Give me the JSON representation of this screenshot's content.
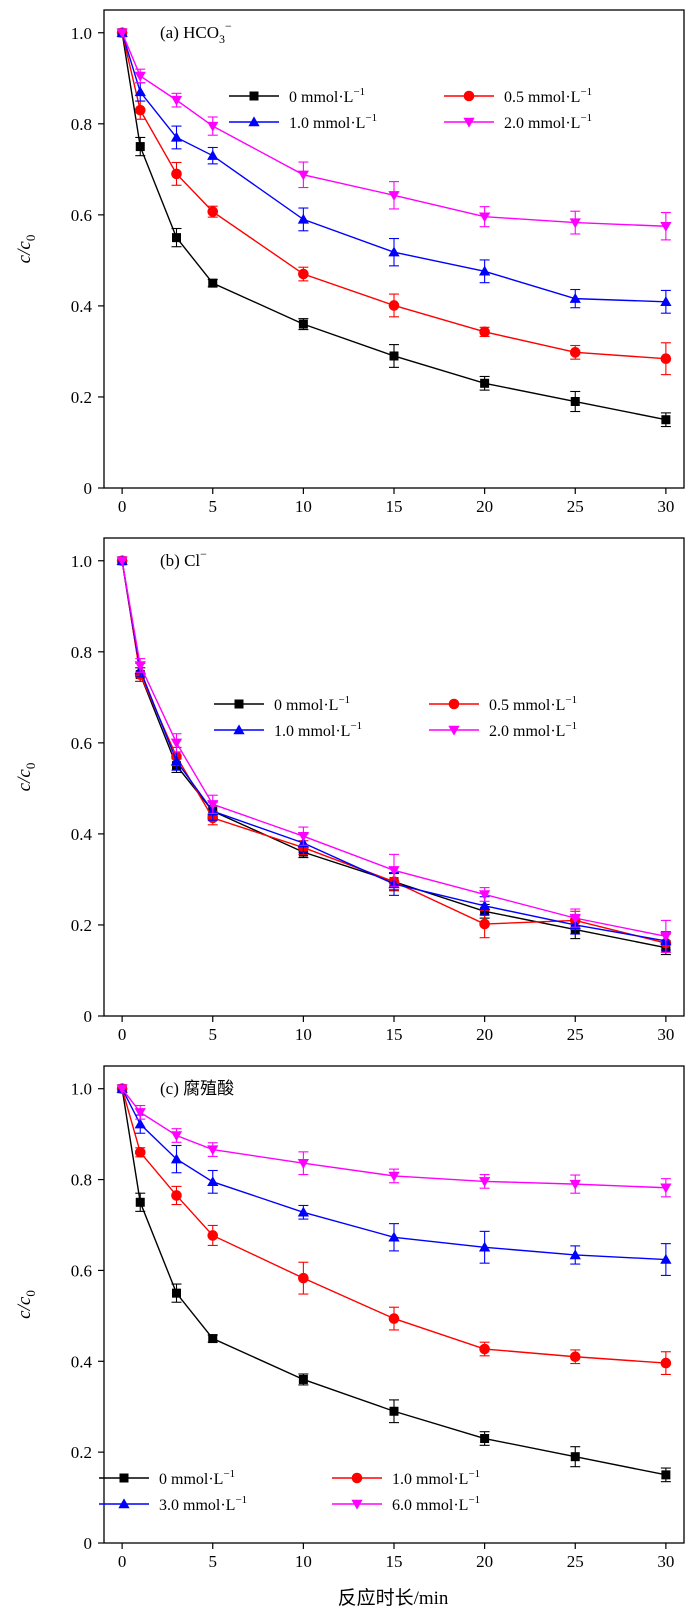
{
  "figure": {
    "xlabel": "反应时长/min",
    "ylabel_main": "c",
    "ylabel_sub": "/c",
    "ylabel_subscript": "0"
  },
  "chart_data": [
    {
      "type": "line",
      "panel_label": "(a) HCO",
      "panel_label_sub": "3",
      "panel_label_sup": "−",
      "xlim": [
        -1,
        31
      ],
      "ylim": [
        0,
        1.05
      ],
      "xticks": [
        0,
        5,
        10,
        15,
        20,
        25,
        30
      ],
      "yticks": [
        0,
        0.2,
        0.4,
        0.6,
        0.8,
        1.0
      ],
      "ytick_labels": [
        "0",
        "0.2",
        "0.4",
        "0.6",
        "0.8",
        "1.0"
      ],
      "error_bars": true,
      "legend_position": "upper-right",
      "x": [
        0,
        1,
        3,
        5,
        10,
        15,
        20,
        25,
        30
      ],
      "series": [
        {
          "name": "0 mmol·L",
          "name_sup": "−1",
          "color": "#000000",
          "marker": "square",
          "values": [
            1.0,
            0.75,
            0.55,
            0.45,
            0.36,
            0.29,
            0.23,
            0.19,
            0.15
          ],
          "errors": [
            0.005,
            0.02,
            0.02,
            0.008,
            0.012,
            0.025,
            0.015,
            0.022,
            0.015
          ]
        },
        {
          "name": "0.5 mmol·L",
          "name_sup": "−1",
          "color": "#ff0000",
          "marker": "circle",
          "values": [
            1.0,
            0.83,
            0.69,
            0.607,
            0.47,
            0.401,
            0.343,
            0.298,
            0.284
          ],
          "errors": [
            0.005,
            0.02,
            0.025,
            0.012,
            0.015,
            0.025,
            0.01,
            0.015,
            0.035
          ]
        },
        {
          "name": "1.0 mmol·L",
          "name_sup": "−1",
          "color": "#0000ff",
          "marker": "triangle-up",
          "values": [
            1.0,
            0.87,
            0.77,
            0.73,
            0.59,
            0.518,
            0.476,
            0.416,
            0.409
          ],
          "errors": [
            0.005,
            0.02,
            0.025,
            0.018,
            0.025,
            0.03,
            0.025,
            0.02,
            0.025
          ]
        },
        {
          "name": "2.0 mmol·L",
          "name_sup": "−1",
          "color": "#ff00ff",
          "marker": "triangle-down",
          "values": [
            1.0,
            0.905,
            0.852,
            0.795,
            0.688,
            0.643,
            0.596,
            0.583,
            0.575
          ],
          "errors": [
            0.005,
            0.015,
            0.015,
            0.02,
            0.028,
            0.03,
            0.022,
            0.025,
            0.03
          ]
        }
      ]
    },
    {
      "type": "line",
      "panel_label": "(b) Cl",
      "panel_label_sub": "",
      "panel_label_sup": "−",
      "xlim": [
        -1,
        31
      ],
      "ylim": [
        0,
        1.05
      ],
      "xticks": [
        0,
        5,
        10,
        15,
        20,
        25,
        30
      ],
      "yticks": [
        0,
        0.2,
        0.4,
        0.6,
        0.8,
        1.0
      ],
      "ytick_labels": [
        "0",
        "0.2",
        "0.4",
        "0.6",
        "0.8",
        "1.0"
      ],
      "error_bars": true,
      "legend_position": "center-right",
      "x": [
        0,
        1,
        3,
        5,
        10,
        15,
        20,
        25,
        30
      ],
      "series": [
        {
          "name": "0 mmol·L",
          "name_sup": "−1",
          "color": "#000000",
          "marker": "square",
          "values": [
            1.0,
            0.75,
            0.55,
            0.45,
            0.36,
            0.295,
            0.23,
            0.19,
            0.15
          ],
          "errors": [
            0.005,
            0.015,
            0.015,
            0.012,
            0.012,
            0.018,
            0.015,
            0.02,
            0.015
          ]
        },
        {
          "name": "0.5 mmol·L",
          "name_sup": "−1",
          "color": "#ff0000",
          "marker": "circle",
          "values": [
            1.0,
            0.75,
            0.57,
            0.435,
            0.37,
            0.295,
            0.202,
            0.21,
            0.16
          ],
          "errors": [
            0.005,
            0.015,
            0.02,
            0.015,
            0.015,
            0.02,
            0.03,
            0.02,
            0.02
          ]
        },
        {
          "name": "1.0 mmol·L",
          "name_sup": "−1",
          "color": "#0000ff",
          "marker": "triangle-up",
          "values": [
            1.0,
            0.76,
            0.56,
            0.45,
            0.38,
            0.29,
            0.242,
            0.2,
            0.165
          ],
          "errors": [
            0.005,
            0.015,
            0.02,
            0.02,
            0.02,
            0.025,
            0.02,
            0.02,
            0.02
          ]
        },
        {
          "name": "2.0 mmol·L",
          "name_sup": "−1",
          "color": "#ff00ff",
          "marker": "triangle-down",
          "values": [
            1.0,
            0.77,
            0.6,
            0.465,
            0.395,
            0.32,
            0.267,
            0.215,
            0.175
          ],
          "errors": [
            0.005,
            0.015,
            0.02,
            0.02,
            0.02,
            0.035,
            0.015,
            0.02,
            0.035
          ]
        }
      ]
    },
    {
      "type": "line",
      "panel_label": "(c) 腐殖酸",
      "panel_label_sub": "",
      "panel_label_sup": "",
      "xlim": [
        -1,
        31
      ],
      "ylim": [
        0,
        1.05
      ],
      "xticks": [
        0,
        5,
        10,
        15,
        20,
        25,
        30
      ],
      "yticks": [
        0,
        0.2,
        0.4,
        0.6,
        0.8,
        1.0
      ],
      "ytick_labels": [
        "0",
        "0.2",
        "0.4",
        "0.6",
        "0.8",
        "1.0"
      ],
      "error_bars": true,
      "legend_position": "lower-left",
      "x": [
        0,
        1,
        3,
        5,
        10,
        15,
        20,
        25,
        30
      ],
      "series": [
        {
          "name": "0 mmol·L",
          "name_sup": "−1",
          "color": "#000000",
          "marker": "square",
          "values": [
            1.0,
            0.75,
            0.55,
            0.45,
            0.36,
            0.29,
            0.23,
            0.19,
            0.15
          ],
          "errors": [
            0.005,
            0.02,
            0.02,
            0.008,
            0.012,
            0.025,
            0.015,
            0.022,
            0.015
          ]
        },
        {
          "name": "1.0 mmol·L",
          "name_sup": "−1",
          "color": "#ff0000",
          "marker": "circle",
          "values": [
            1.0,
            0.86,
            0.765,
            0.677,
            0.583,
            0.494,
            0.427,
            0.41,
            0.396
          ],
          "errors": [
            0.005,
            0.01,
            0.02,
            0.022,
            0.035,
            0.025,
            0.015,
            0.015,
            0.025
          ]
        },
        {
          "name": "3.0 mmol·L",
          "name_sup": "−1",
          "color": "#0000ff",
          "marker": "triangle-up",
          "values": [
            1.0,
            0.922,
            0.845,
            0.795,
            0.728,
            0.673,
            0.651,
            0.634,
            0.624
          ],
          "errors": [
            0.005,
            0.02,
            0.03,
            0.025,
            0.015,
            0.03,
            0.035,
            0.02,
            0.035
          ]
        },
        {
          "name": "6.0 mmol·L",
          "name_sup": "−1",
          "color": "#ff00ff",
          "marker": "triangle-down",
          "values": [
            1.0,
            0.948,
            0.897,
            0.866,
            0.836,
            0.808,
            0.796,
            0.79,
            0.782
          ],
          "errors": [
            0.005,
            0.015,
            0.015,
            0.015,
            0.025,
            0.015,
            0.015,
            0.02,
            0.02
          ]
        }
      ]
    }
  ]
}
